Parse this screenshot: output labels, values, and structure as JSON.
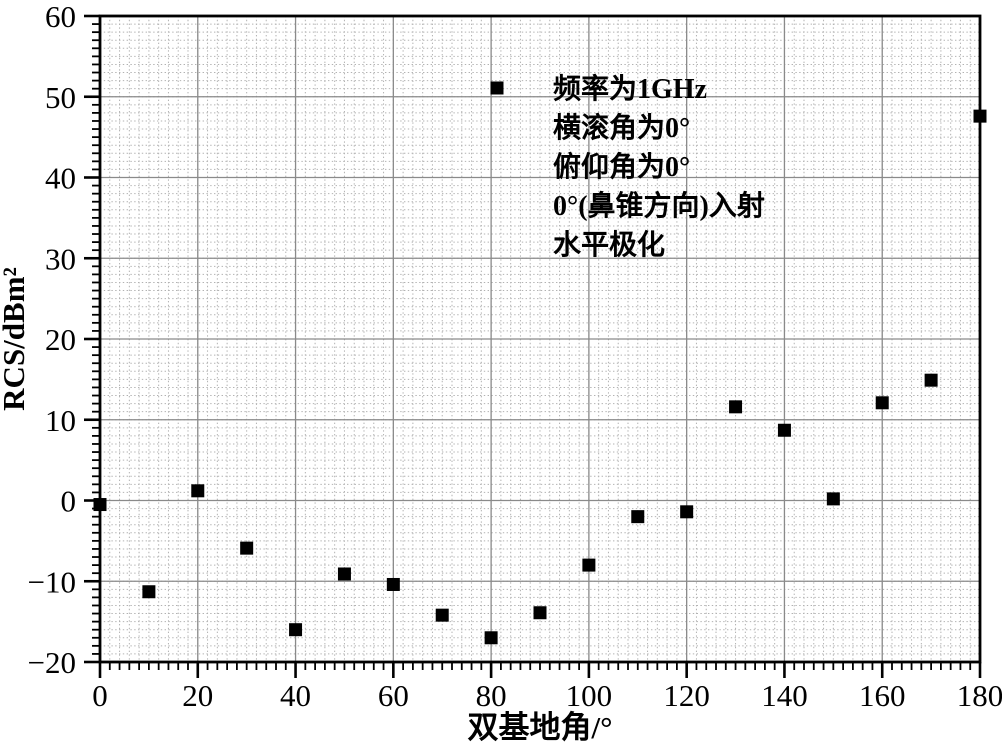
{
  "figure": {
    "kind": "scatter-plot-print-style"
  },
  "legend": {
    "marker": "filled-black-square",
    "lines": [
      "频率为1GHz",
      "横滚角为0°",
      "俯仰角为0°",
      "0°(鼻锥方向)入射",
      "水平极化"
    ]
  },
  "colors": {
    "marker": "#000000",
    "axis": "#000000",
    "major_grid": "#8a8a8a",
    "minor_grid": "#b2b2b2",
    "background": "#ffffff"
  },
  "chart_data": {
    "type": "scatter",
    "title": "",
    "xlabel": "双基地角/°",
    "ylabel": "RCS/dBm²",
    "xlim": [
      0,
      180
    ],
    "ylim": [
      -20,
      60
    ],
    "x_ticks": [
      0,
      20,
      40,
      60,
      80,
      100,
      120,
      140,
      160,
      180
    ],
    "y_ticks": [
      -20,
      -10,
      0,
      10,
      20,
      30,
      40,
      50,
      60
    ],
    "x_minor_step": 2,
    "y_minor_step": 1,
    "grid": {
      "major": true,
      "minor": true,
      "minor_style": "dotted"
    },
    "legend_position": "upper-center",
    "marker_size_px": 13,
    "series": [
      {
        "name": "频率为1GHz 横滚角为0° 俯仰角为0° 0°(鼻锥方向)入射 水平极化",
        "marker": "square",
        "color": "#000000",
        "x": [
          0,
          10,
          20,
          30,
          40,
          50,
          60,
          70,
          80,
          90,
          100,
          110,
          120,
          130,
          140,
          150,
          160,
          170,
          180
        ],
        "y": [
          -0.5,
          -11.3,
          1.2,
          -5.9,
          -16.0,
          -9.1,
          -10.4,
          -14.2,
          -17.0,
          -13.9,
          -8.0,
          -2.0,
          -1.4,
          11.6,
          8.7,
          0.2,
          12.1,
          14.9,
          47.6
        ]
      }
    ]
  }
}
